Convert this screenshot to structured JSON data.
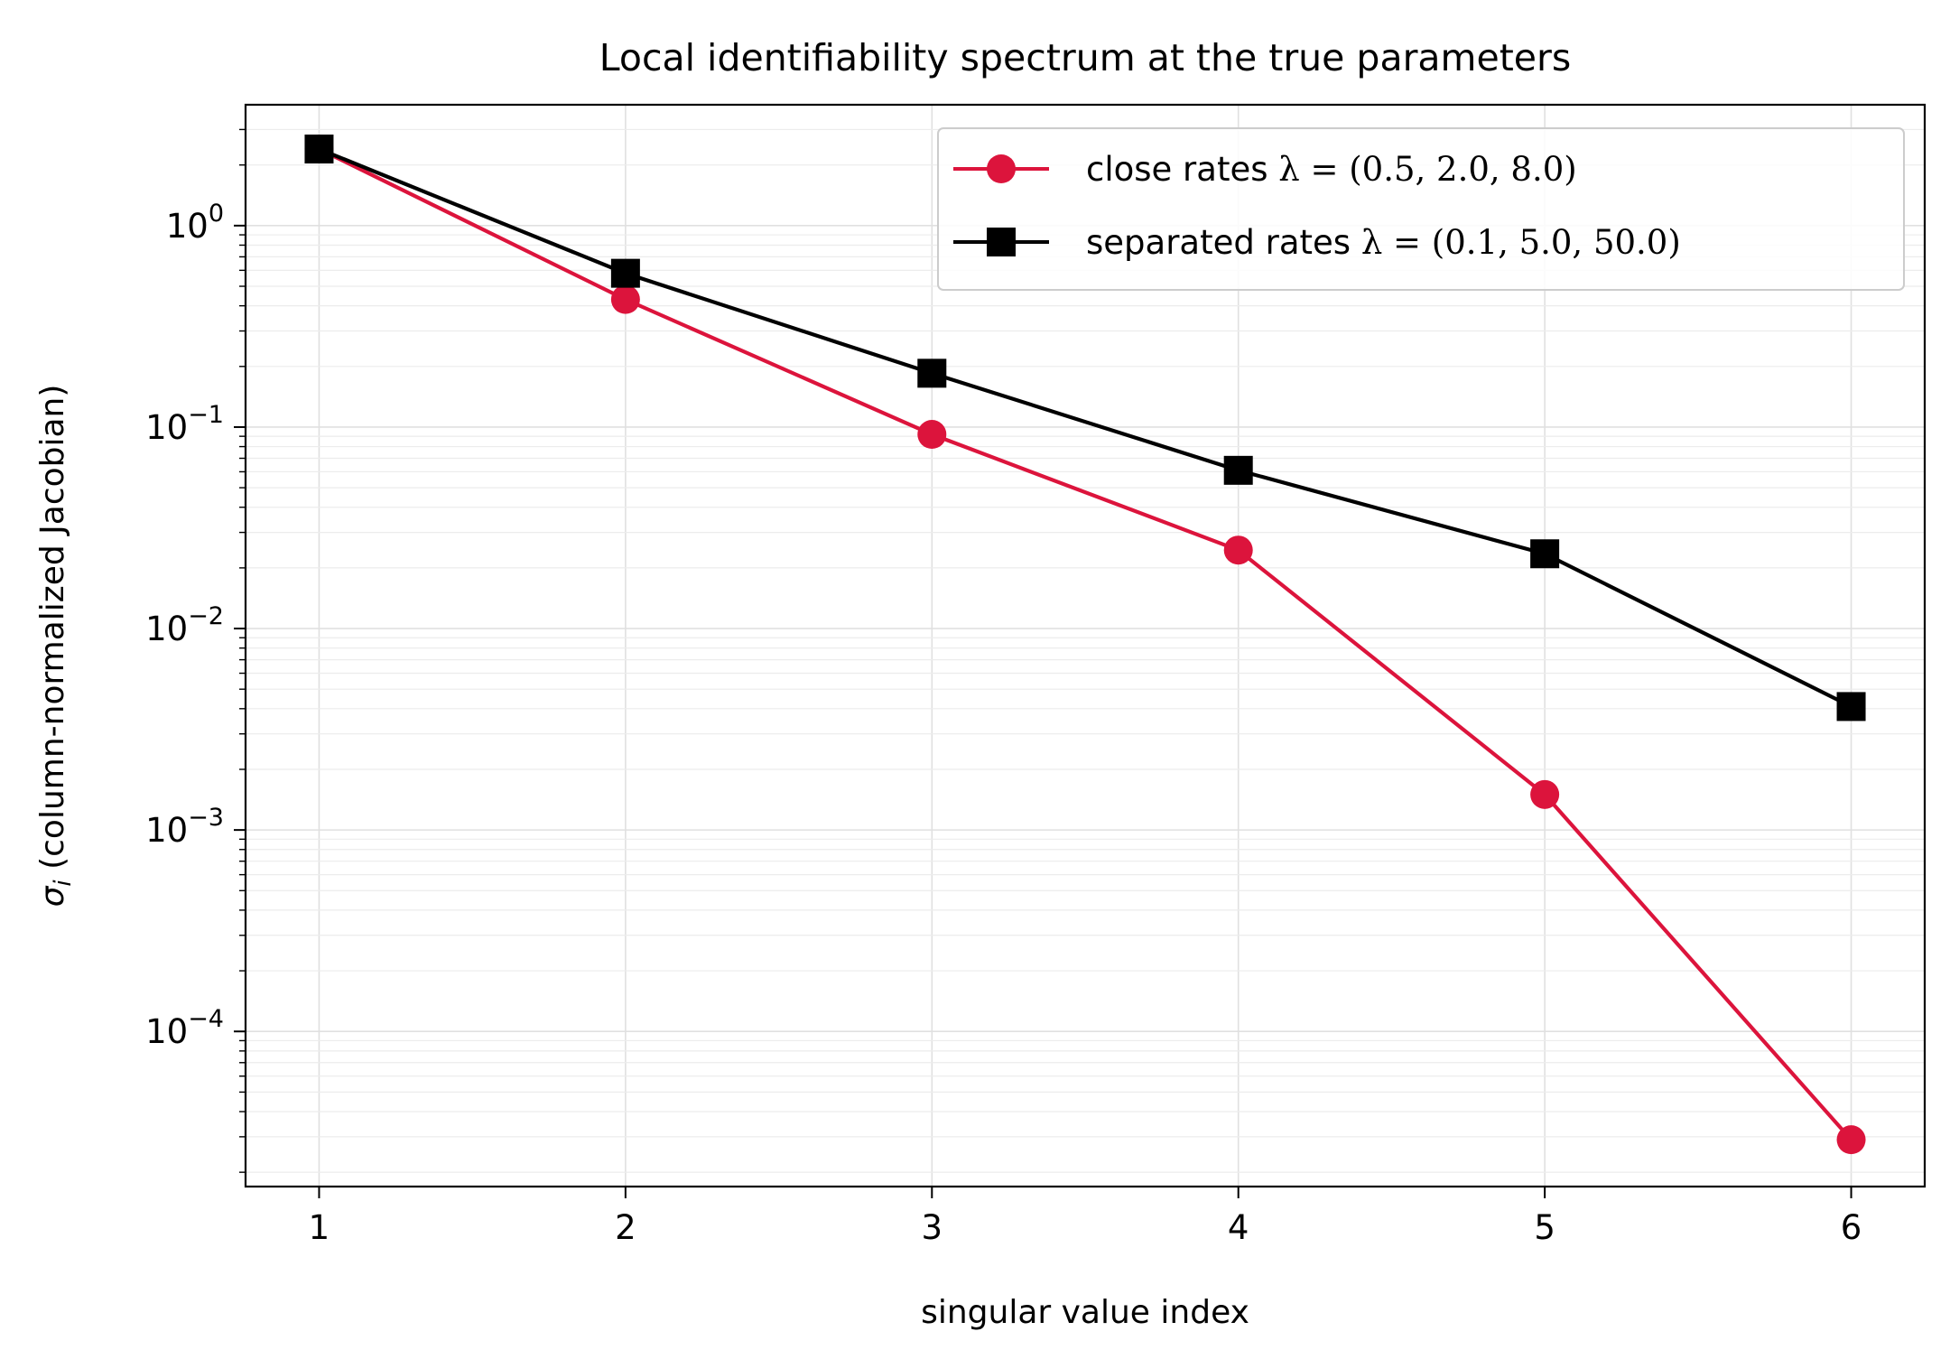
{
  "chart_data": {
    "type": "line",
    "title": "Local identifiability spectrum at the true parameters",
    "xlabel": "singular value index",
    "ylabel": {
      "sym": "σ",
      "sub": "i",
      "rest": " (column-normalized Jacobian)"
    },
    "x": [
      1,
      2,
      3,
      4,
      5,
      6
    ],
    "xlim": [
      0.76,
      6.24
    ],
    "yscale": "log",
    "ylim_exponent": [
      -4.77,
      0.6
    ],
    "yticks": [
      {
        "base": "10",
        "exp": "0",
        "value": 1
      },
      {
        "base": "10",
        "exp": "−1",
        "value": 0.1
      },
      {
        "base": "10",
        "exp": "−2",
        "value": 0.01
      },
      {
        "base": "10",
        "exp": "−3",
        "value": 0.001
      },
      {
        "base": "10",
        "exp": "−4",
        "value": 0.0001
      }
    ],
    "grid": true,
    "legend_position": "top-right",
    "series": [
      {
        "name_text": "close rates ",
        "name_math": "λ = (0.5, 2.0, 8.0)",
        "color": "#dc143c",
        "marker": "circle",
        "values": [
          2.4,
          0.43,
          0.092,
          0.0245,
          0.0015,
          2.9e-05
        ]
      },
      {
        "name_text": "separated rates ",
        "name_math": "λ = (0.1, 5.0, 50.0)",
        "color": "#000000",
        "marker": "square",
        "values": [
          2.4,
          0.58,
          0.185,
          0.061,
          0.0235,
          0.0041
        ]
      }
    ]
  }
}
